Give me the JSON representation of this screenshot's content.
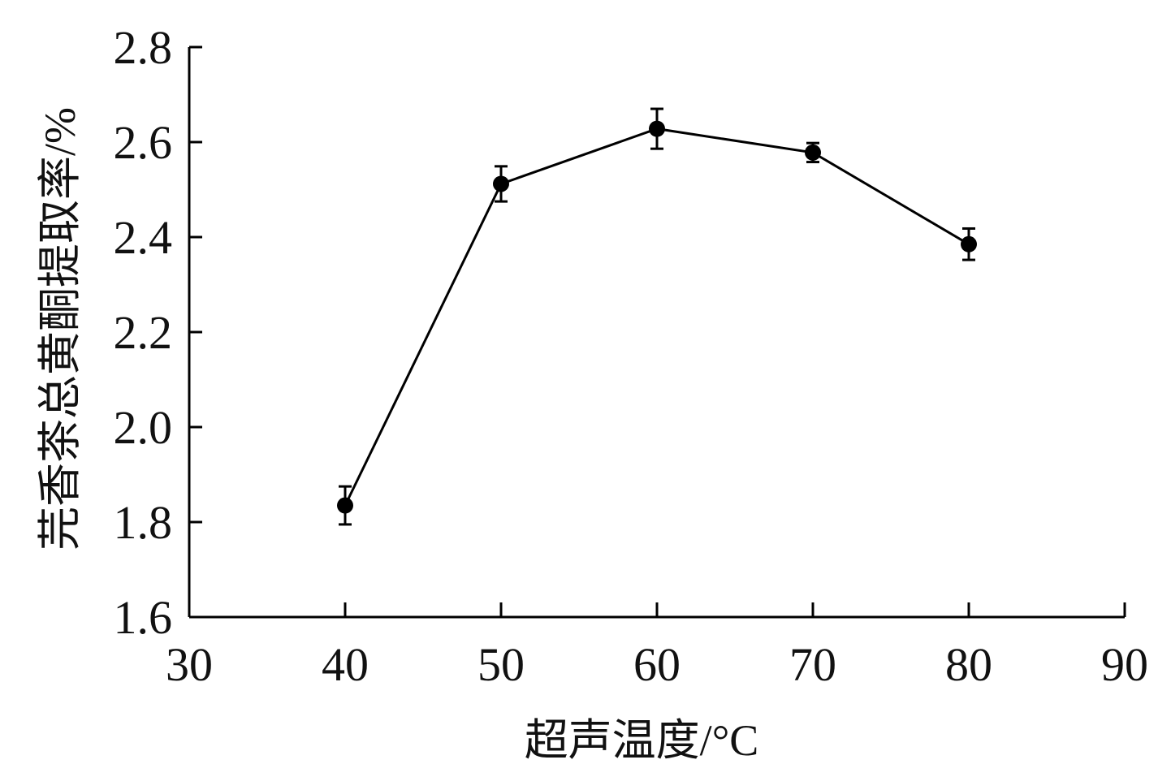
{
  "chart_data": {
    "type": "line",
    "title": "",
    "xlabel": "超声温度/°C",
    "ylabel": "芫香茶总黄酮提取率/%",
    "xlim": [
      30,
      90
    ],
    "ylim": [
      1.6,
      2.8
    ],
    "x_ticks": [
      "30",
      "40",
      "50",
      "60",
      "70",
      "80",
      "90"
    ],
    "y_ticks": [
      "1.6",
      "1.8",
      "2.0",
      "2.2",
      "2.4",
      "2.6",
      "2.8"
    ],
    "grid": false,
    "legend": "none",
    "series": [
      {
        "x": [
          40,
          50,
          60,
          70,
          80
        ],
        "y": [
          1.835,
          2.512,
          2.628,
          2.578,
          2.385
        ],
        "error": [
          0.04,
          0.037,
          0.042,
          0.02,
          0.033
        ],
        "color": "#000000",
        "marker": "circle"
      }
    ]
  }
}
